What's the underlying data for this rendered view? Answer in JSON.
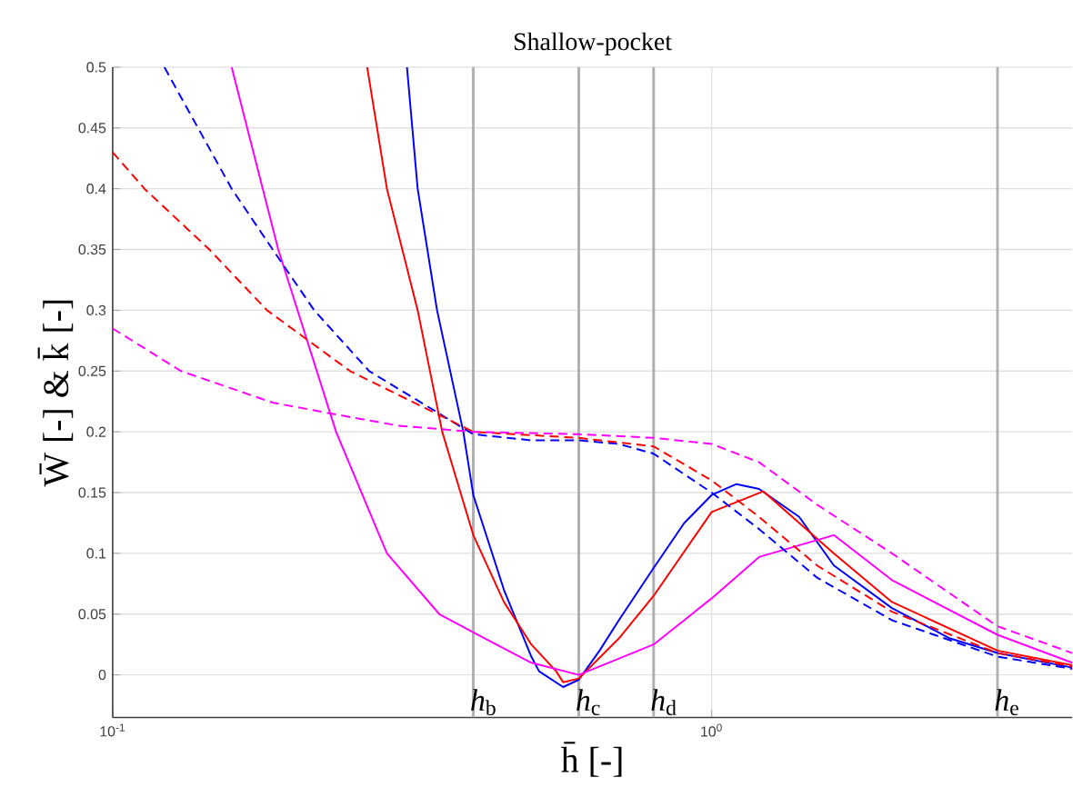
{
  "chart_data": {
    "type": "line",
    "title": "Shallow-pocket",
    "xlabel": "h̄ [-]",
    "ylabel": "W̄ [-]  &  k̄ [-]",
    "log": "x",
    "grid": true,
    "xlim": [
      0.1,
      4
    ],
    "ylim": [
      -0.035,
      0.5
    ],
    "xticks": [
      {
        "value": 0.1,
        "label": "10$^{-1}$"
      },
      {
        "value": 1,
        "label": "10$^{0}$"
      }
    ],
    "yticks": [
      0,
      0.05,
      0.1,
      0.15,
      0.2,
      0.25,
      0.3,
      0.35,
      0.4,
      0.45,
      0.5
    ],
    "series": [
      {
        "color": "#0000ff",
        "line_style": "solid",
        "x": [
          0.31,
          0.323,
          0.348,
          0.385,
          0.4,
          0.45,
          0.5,
          0.515,
          0.565,
          0.6,
          0.65,
          0.7,
          0.8,
          0.9,
          1.0,
          1.1,
          1.2,
          1.4,
          1.6,
          2.0,
          2.5,
          3.0,
          4.0
        ],
        "values": [
          0.5,
          0.4,
          0.3,
          0.2,
          0.148,
          0.07,
          0.015,
          0.003,
          -0.01,
          -0.004,
          0.02,
          0.045,
          0.088,
          0.125,
          0.148,
          0.157,
          0.153,
          0.13,
          0.09,
          0.055,
          0.03,
          0.018,
          0.006
        ]
      },
      {
        "color": "#ff0000",
        "line_style": "solid",
        "x": [
          0.266,
          0.287,
          0.323,
          0.355,
          0.4,
          0.45,
          0.5,
          0.55,
          0.565,
          0.6,
          0.7,
          0.8,
          1.0,
          1.22,
          1.6,
          2.0,
          3.0,
          4.0
        ],
        "values": [
          0.5,
          0.4,
          0.3,
          0.2,
          0.115,
          0.06,
          0.025,
          0.003,
          -0.006,
          -0.003,
          0.03,
          0.065,
          0.134,
          0.151,
          0.1,
          0.06,
          0.02,
          0.008
        ]
      },
      {
        "color": "#ff00ff",
        "line_style": "solid",
        "x": [
          0.158,
          0.189,
          0.236,
          0.287,
          0.351,
          0.4,
          0.5,
          0.6,
          0.8,
          1.0,
          1.2,
          1.6,
          2.0,
          3.0,
          4.0
        ],
        "values": [
          0.5,
          0.35,
          0.2,
          0.1,
          0.05,
          0.035,
          0.01,
          0.0,
          0.025,
          0.063,
          0.097,
          0.115,
          0.078,
          0.033,
          0.01
        ]
      },
      {
        "color": "#0000ff",
        "line_style": "dashed",
        "x": [
          0.122,
          0.158,
          0.185,
          0.217,
          0.268,
          0.4,
          0.5,
          0.6,
          0.7,
          0.8,
          1.0,
          1.2,
          1.5,
          2.0,
          3.0,
          4.0
        ],
        "values": [
          0.5,
          0.4,
          0.35,
          0.3,
          0.25,
          0.198,
          0.193,
          0.193,
          0.19,
          0.182,
          0.15,
          0.12,
          0.08,
          0.045,
          0.015,
          0.005
        ]
      },
      {
        "color": "#ff0000",
        "line_style": "dashed",
        "x": [
          0.1,
          0.113,
          0.145,
          0.181,
          0.249,
          0.4,
          0.6,
          0.8,
          1.0,
          1.2,
          1.5,
          2.0,
          3.0,
          4.0
        ],
        "values": [
          0.43,
          0.4,
          0.35,
          0.3,
          0.25,
          0.2,
          0.195,
          0.188,
          0.16,
          0.13,
          0.09,
          0.052,
          0.018,
          0.007
        ]
      },
      {
        "color": "#ff00ff",
        "line_style": "dashed",
        "x": [
          0.1,
          0.13,
          0.185,
          0.25,
          0.3,
          0.4,
          0.6,
          0.8,
          1.0,
          1.2,
          1.5,
          2.0,
          3.0,
          4.0
        ],
        "values": [
          0.285,
          0.25,
          0.224,
          0.212,
          0.205,
          0.2,
          0.198,
          0.195,
          0.19,
          0.175,
          0.14,
          0.1,
          0.04,
          0.018
        ]
      }
    ],
    "ref_lines": [
      {
        "axis": "x",
        "value": 0.4,
        "label": "*h*$_{b}$",
        "color": "#b0b0b0"
      },
      {
        "axis": "x",
        "value": 0.6,
        "label": "*h*$_{c}$",
        "color": "#b0b0b0"
      },
      {
        "axis": "x",
        "value": 0.8,
        "label": "*h*$_{d}$",
        "color": "#b0b0b0"
      },
      {
        "axis": "x",
        "value": 3,
        "label": "*h*$_{e}$",
        "color": "#b0b0b0"
      }
    ]
  }
}
